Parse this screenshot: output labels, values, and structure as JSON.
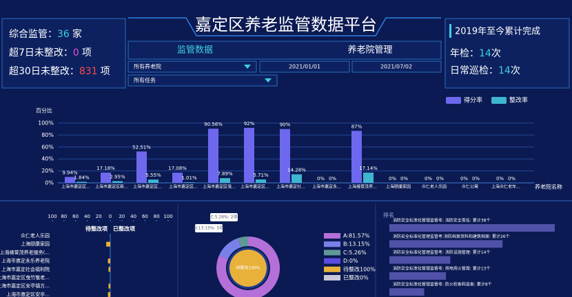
{
  "header": {
    "title": "嘉定区养老监管数据平台"
  },
  "summary": {
    "items": [
      {
        "label": "综合监管：",
        "value": 36,
        "unit": "家"
      },
      {
        "label": "超7日未整改：",
        "value": 0,
        "unit": "项"
      },
      {
        "label": "超30日未整改：",
        "value": 831,
        "unit": "项"
      }
    ]
  },
  "filters": {
    "tabs": [
      "监管数据",
      "养老院管理"
    ],
    "facility": "所有养老院",
    "start": "2021/01/01",
    "end": "2021/07/02",
    "task": "所有任务"
  },
  "totals": {
    "title": "2019年至今累计完成",
    "items": [
      {
        "label": "年检：",
        "value": 14,
        "unit": "次"
      },
      {
        "label": "日常巡检：",
        "value": 14,
        "unit": "次"
      }
    ]
  },
  "chart_data": [
    {
      "type": "bar",
      "y_label": "百分比",
      "x_label": "养老院名称",
      "categories": [
        "上海市嘉定区...",
        "上海市嘉定区新...",
        "上海市嘉定区...",
        "上海市嘉定区...",
        "上海市嘉定区曳...",
        "上海市嘉定区...",
        "上海市嘉定社...",
        "上海市嘉定永...",
        "上海椿萱茂养...",
        "上海颐康家园",
        "众仁老人乐园",
        "众仁公寓",
        "上海众仁老年..."
      ],
      "series": [
        {
          "name": "得分率",
          "color": "#6d68ee",
          "values": [
            9.94,
            17.18,
            52.51,
            17.08,
            90.56,
            92,
            90,
            0,
            87,
            0,
            0,
            0,
            0
          ],
          "value_labels": [
            "9.94%",
            "17.18%",
            "52.51%",
            "17.08%",
            "90.56%",
            "92%",
            "90%",
            "0%",
            "87%",
            "0%",
            "0%",
            "0%",
            "0%"
          ]
        },
        {
          "name": "整改率",
          "color": "#3fb6cf",
          "values": [
            1.84,
            2.95,
            5.55,
            1.01,
            7.89,
            5.71,
            14.28,
            0,
            17.14,
            0,
            0,
            0,
            0
          ],
          "value_labels": [
            "1.84%",
            "2.95%",
            "5.55%",
            "1.01%",
            "7.89%",
            "5.71%",
            "14.28%",
            "0%",
            "17.14%",
            "0%",
            "0%",
            "0%",
            "0%"
          ]
        }
      ],
      "ylim": [
        0,
        100
      ],
      "yticks": [
        {
          "value": 0,
          "label": "0%"
        },
        {
          "value": 20,
          "label": "20%"
        },
        {
          "value": 40,
          "label": "40%"
        },
        {
          "value": 60,
          "label": "60%"
        },
        {
          "value": 80,
          "label": "80%"
        },
        {
          "value": 100,
          "label": "100%"
        }
      ],
      "grid": true
    },
    {
      "type": "diverging",
      "categories": [
        "众仁老人乐园",
        "上海颐康家园",
        "上海椿萱茂养老服务(...",
        "上海市嘉定永乐养老院",
        "上海市嘉定社会福利院",
        "上海市嘉定区曳竹敬老...",
        "上海市嘉定区安亭镇方...",
        "上海市嘉定区安亭..."
      ],
      "series": [
        {
          "name": "待整改项",
          "color": "#e8b13a",
          "values": [
            0,
            7,
            0,
            4,
            3,
            0,
            3,
            4
          ]
        },
        {
          "name": "已整改项",
          "color": "#3fb6cf",
          "values": [
            0,
            0,
            0,
            0,
            0,
            0,
            0,
            0
          ]
        }
      ],
      "xlim": [
        0,
        100
      ],
      "xticks_left": [
        100,
        80,
        60,
        40,
        20,
        0
      ],
      "xticks_right": [
        20,
        40,
        60,
        80,
        100
      ]
    },
    {
      "type": "donut",
      "series": [
        {
          "name": "outer",
          "values": [
            81.57,
            13.15,
            5.26,
            0
          ],
          "value_labels": [
            "A:81.57%",
            "B:13.15%",
            "C:5.26%",
            "D:0%"
          ],
          "colors": [
            "#b56fd8",
            "#7a80ea",
            "#5f9a96",
            "#5b4de0"
          ],
          "callouts": [
            null,
            "B:13.15%: 5项",
            "C:5.26%: 2项",
            null
          ]
        },
        {
          "name": "inner",
          "values": [
            100,
            0
          ],
          "value_labels": [
            "待整改100%",
            "已整改0%"
          ],
          "colors": [
            "#e8b13a",
            "#c8c8d8"
          ]
        }
      ]
    },
    {
      "type": "ranking",
      "title": "排名",
      "categories": [
        "消防安全标准化管理监管考: 消防安全责任: 累计38个",
        "消防安全标准化管理监管考:消防档案资料和建筑档案: 累计26个",
        "消防安全标准化管理监管考: 消防设施管理: 累计14个",
        "消防安全标准化管理监管考: 用电用火管理: 累计13个",
        "消防安全标准化管理监管考: 防火检查和巡查: 累计8个"
      ],
      "values": [
        38,
        26,
        14,
        13,
        8
      ],
      "color": "#4f52a8"
    }
  ]
}
